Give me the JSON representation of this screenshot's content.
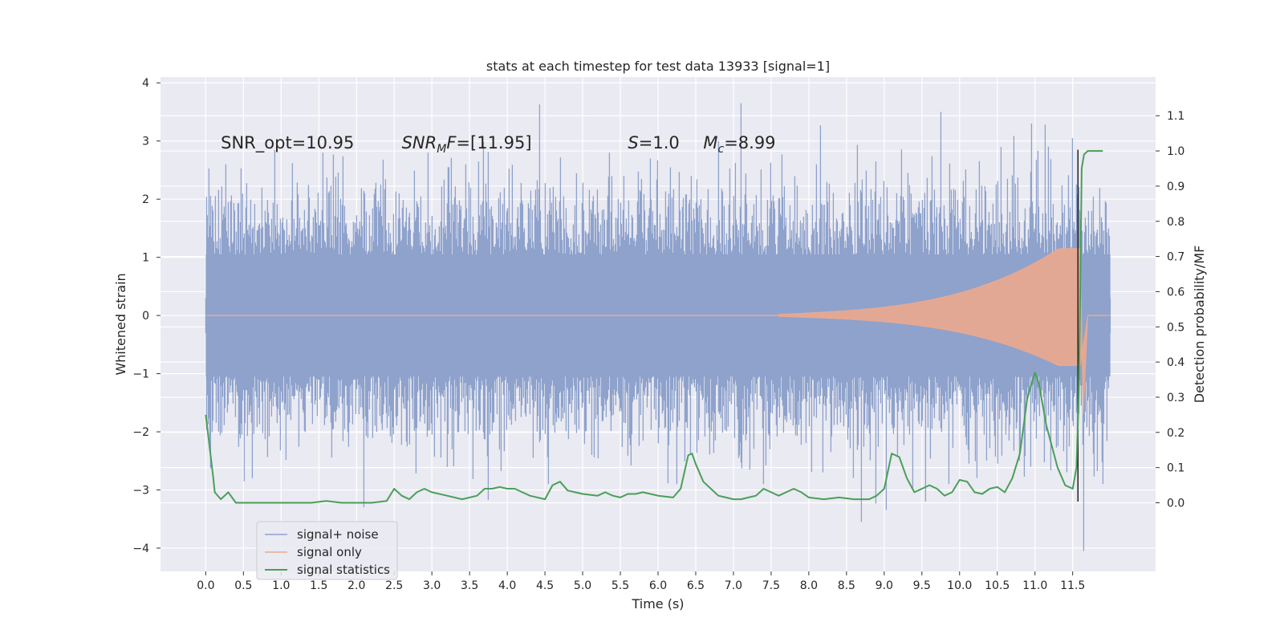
{
  "chart_data": {
    "type": "line",
    "title": "stats at each timestep for test data 13933 [signal=1]",
    "xlabel": "Time (s)",
    "ylabel": "Whitened strain",
    "y2label": "Detection probability/MF",
    "xlim": [
      -0.6,
      12.6
    ],
    "ylim": [
      -4.4,
      4.1
    ],
    "y2lim": [
      -0.195,
      1.21
    ],
    "xticks": [
      "0.0",
      "0.5",
      "1.0",
      "1.5",
      "2.0",
      "2.5",
      "3.0",
      "3.5",
      "4.0",
      "4.5",
      "5.0",
      "5.5",
      "6.0",
      "6.5",
      "7.0",
      "7.5",
      "8.0",
      "8.5",
      "9.0",
      "9.5",
      "10.0",
      "10.5",
      "11.0",
      "11.5"
    ],
    "xtick_values": [
      0,
      0.5,
      1,
      1.5,
      2,
      2.5,
      3,
      3.5,
      4,
      4.5,
      5,
      5.5,
      6,
      6.5,
      7,
      7.5,
      8,
      8.5,
      9,
      9.5,
      10,
      10.5,
      11,
      11.5
    ],
    "yticks": [
      "−4",
      "−3",
      "−2",
      "−1",
      "0",
      "1",
      "2",
      "3",
      "4"
    ],
    "ytick_values": [
      -4,
      -3,
      -2,
      -1,
      0,
      1,
      2,
      3,
      4
    ],
    "y2ticks": [
      "0.0",
      "0.1",
      "0.2",
      "0.3",
      "0.4",
      "0.5",
      "0.6",
      "0.7",
      "0.8",
      "0.9",
      "1.0",
      "1.1"
    ],
    "y2tick_values": [
      0,
      0.1,
      0.2,
      0.3,
      0.4,
      0.5,
      0.6,
      0.7,
      0.8,
      0.9,
      1.0,
      1.1
    ],
    "grid": true,
    "legend_position": "lower-left",
    "annotations": [
      {
        "name": "snr-opt",
        "parts": [
          {
            "t": "SNR_opt=10.95"
          }
        ],
        "x": 0.2,
        "y": 2.87
      },
      {
        "name": "snr-mf",
        "parts": [
          {
            "t": "SNR",
            "i": true
          },
          {
            "t": "M",
            "i": true,
            "sub": true
          },
          {
            "t": "F",
            "i": true
          },
          {
            "t": "=[11.95]"
          }
        ],
        "x": 2.6,
        "y": 2.87
      },
      {
        "name": "s-value",
        "parts": [
          {
            "t": "S",
            "i": true
          },
          {
            "t": "=1.0"
          }
        ],
        "x": 5.6,
        "y": 2.87
      },
      {
        "name": "mc-value",
        "parts": [
          {
            "t": "M",
            "i": true
          },
          {
            "t": "c",
            "i": true,
            "sub": true
          },
          {
            "t": "=8.99"
          }
        ],
        "x": 6.6,
        "y": 2.87
      }
    ],
    "vline": {
      "x": 11.57,
      "ymin": -3.2,
      "ymax": 2.85,
      "color": "#222222"
    },
    "series": [
      {
        "name": "signal+ noise",
        "color": "#8ea2cc",
        "axis": "left",
        "kind": "noise",
        "x_range": [
          0,
          12.0
        ],
        "typical_range": [
          -2.2,
          2.2
        ],
        "peaks": [
          {
            "x": 0.27,
            "y": 2.6
          },
          {
            "x": 1.55,
            "y": 2.8
          },
          {
            "x": 2.1,
            "y": -3.3
          },
          {
            "x": 2.95,
            "y": 2.8
          },
          {
            "x": 3.45,
            "y": 2.6
          },
          {
            "x": 4.55,
            "y": -2.9
          },
          {
            "x": 5.35,
            "y": 2.8
          },
          {
            "x": 5.9,
            "y": 2.7
          },
          {
            "x": 6.25,
            "y": -2.9
          },
          {
            "x": 6.8,
            "y": 3.0
          },
          {
            "x": 7.1,
            "y": 3.65
          },
          {
            "x": 7.4,
            "y": -2.9
          },
          {
            "x": 8.1,
            "y": 2.6
          },
          {
            "x": 8.7,
            "y": -3.55
          },
          {
            "x": 9.55,
            "y": -3.2
          },
          {
            "x": 9.75,
            "y": 3.5
          },
          {
            "x": 10.55,
            "y": 2.9
          },
          {
            "x": 10.95,
            "y": 3.3
          },
          {
            "x": 11.5,
            "y": 3.05
          },
          {
            "x": 11.65,
            "y": -4.05
          },
          {
            "x": 11.9,
            "y": -2.9
          }
        ]
      },
      {
        "name": "signal only",
        "color": "#e8a990",
        "axis": "left",
        "kind": "chirp",
        "start": 7.6,
        "merger": 11.6,
        "peak_amplitude": 1.15,
        "end": 12.0
      },
      {
        "name": "signal statistics",
        "color": "#4a9f58",
        "axis": "right",
        "kind": "line",
        "x": [
          0.0,
          0.1,
          0.12,
          0.2,
          0.3,
          0.4,
          0.5,
          0.6,
          0.7,
          0.8,
          1.0,
          1.2,
          1.4,
          1.6,
          1.8,
          2.0,
          2.2,
          2.4,
          2.5,
          2.6,
          2.7,
          2.8,
          2.9,
          3.0,
          3.2,
          3.4,
          3.6,
          3.7,
          3.8,
          3.9,
          4.0,
          4.1,
          4.2,
          4.3,
          4.5,
          4.6,
          4.7,
          4.8,
          4.9,
          5.0,
          5.2,
          5.3,
          5.4,
          5.5,
          5.6,
          5.7,
          5.8,
          5.9,
          6.0,
          6.2,
          6.3,
          6.4,
          6.45,
          6.5,
          6.6,
          6.7,
          6.8,
          6.9,
          7.0,
          7.1,
          7.2,
          7.3,
          7.4,
          7.5,
          7.6,
          7.7,
          7.8,
          7.9,
          8.0,
          8.2,
          8.4,
          8.6,
          8.8,
          8.9,
          9.0,
          9.1,
          9.2,
          9.3,
          9.4,
          9.5,
          9.6,
          9.7,
          9.8,
          9.9,
          10.0,
          10.1,
          10.2,
          10.3,
          10.4,
          10.5,
          10.6,
          10.7,
          10.8,
          10.9,
          11.0,
          11.05,
          11.1,
          11.15,
          11.2,
          11.3,
          11.4,
          11.5,
          11.55,
          11.58,
          11.6,
          11.62,
          11.65,
          11.7,
          11.9
        ],
        "values": [
          0.25,
          0.07,
          0.03,
          0.01,
          0.03,
          0.0,
          0.0,
          0.0,
          0.0,
          0.0,
          0.0,
          0.0,
          0.0,
          0.005,
          0.0,
          0.0,
          0.0,
          0.005,
          0.04,
          0.02,
          0.01,
          0.03,
          0.04,
          0.03,
          0.02,
          0.01,
          0.02,
          0.04,
          0.04,
          0.045,
          0.04,
          0.04,
          0.03,
          0.02,
          0.01,
          0.05,
          0.06,
          0.035,
          0.03,
          0.025,
          0.02,
          0.03,
          0.02,
          0.015,
          0.025,
          0.025,
          0.03,
          0.025,
          0.02,
          0.015,
          0.04,
          0.135,
          0.14,
          0.11,
          0.06,
          0.04,
          0.02,
          0.015,
          0.01,
          0.01,
          0.015,
          0.02,
          0.04,
          0.03,
          0.02,
          0.03,
          0.04,
          0.03,
          0.015,
          0.01,
          0.015,
          0.01,
          0.01,
          0.02,
          0.04,
          0.14,
          0.13,
          0.07,
          0.03,
          0.04,
          0.05,
          0.04,
          0.02,
          0.03,
          0.065,
          0.06,
          0.03,
          0.025,
          0.04,
          0.045,
          0.03,
          0.07,
          0.14,
          0.3,
          0.37,
          0.34,
          0.28,
          0.22,
          0.18,
          0.1,
          0.05,
          0.04,
          0.1,
          0.3,
          0.6,
          0.95,
          0.99,
          1.0,
          1.0
        ]
      }
    ]
  }
}
